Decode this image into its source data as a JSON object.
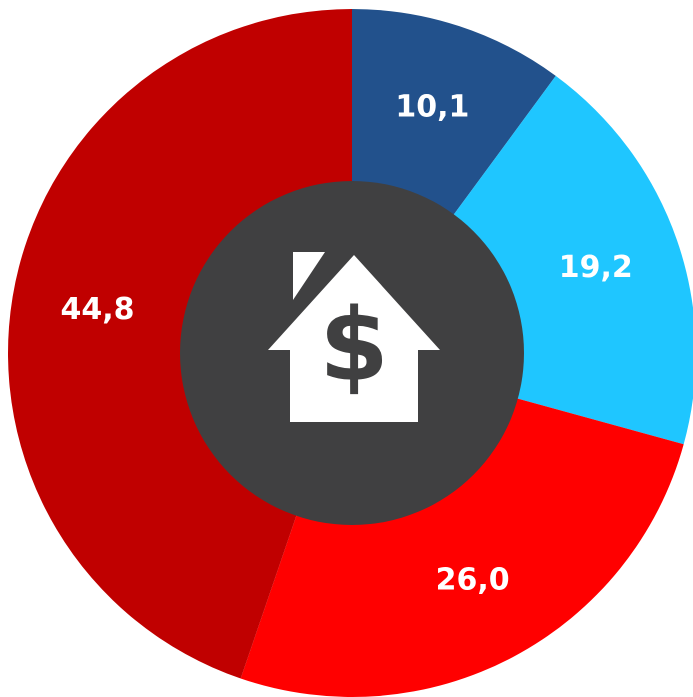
{
  "chart_data": {
    "type": "donut",
    "categories": [
      null,
      null,
      null,
      null
    ],
    "values": [
      10.1,
      19.2,
      26.0,
      44.8
    ],
    "value_labels": [
      "10,1",
      "19,2",
      "26,0",
      "44,8"
    ],
    "colors": [
      "#22518c",
      "#1fc6ff",
      "#ff0000",
      "#c00000"
    ]
  }
}
